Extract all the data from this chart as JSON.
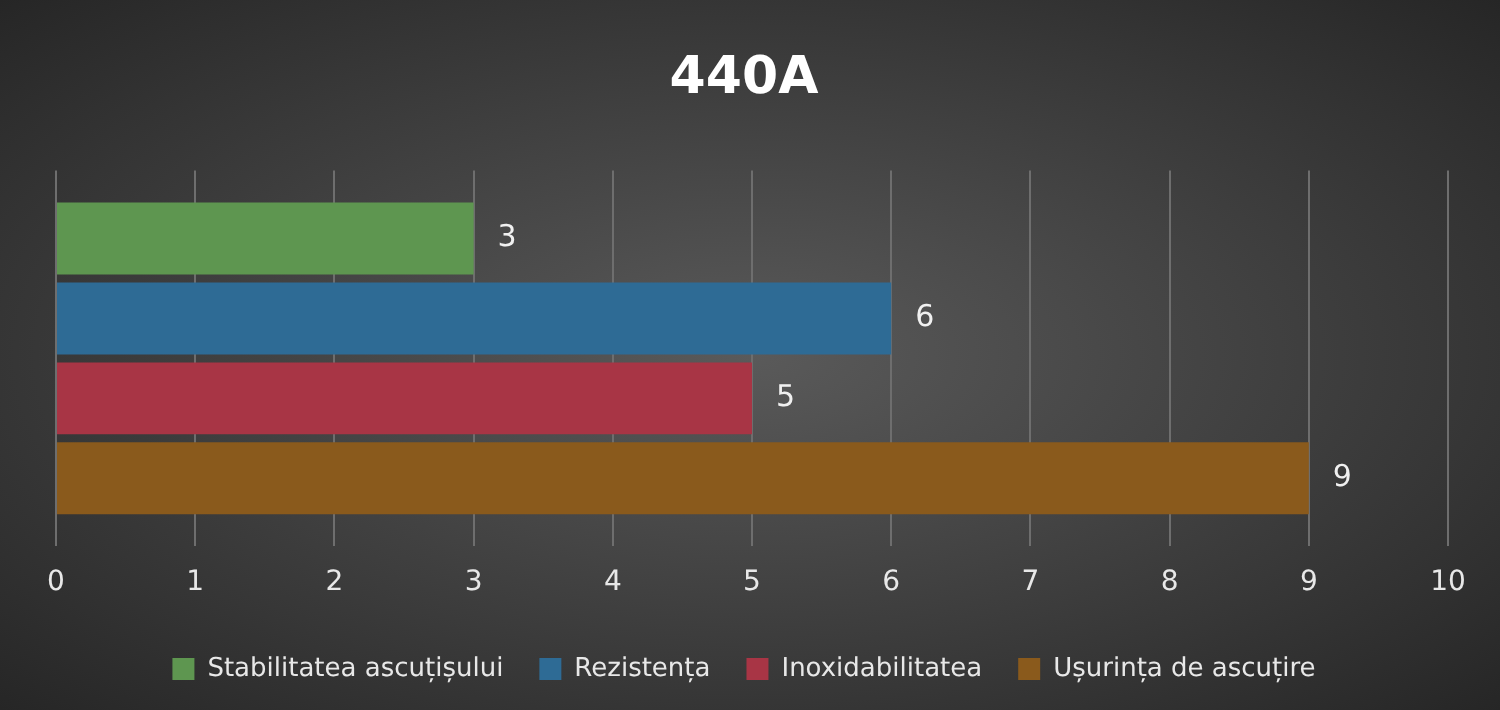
{
  "chart_data": {
    "type": "bar",
    "title": "440A",
    "orientation": "horizontal",
    "categories": [
      null
    ],
    "series": [
      {
        "name": "Stabilitatea ascuțișului",
        "color": "#5e9650",
        "values": [
          3
        ]
      },
      {
        "name": "Rezistența",
        "color": "#2e6b95",
        "values": [
          6
        ]
      },
      {
        "name": "Inoxidabilitatea",
        "color": "#a83545",
        "values": [
          5
        ]
      },
      {
        "name": "Ușurința de ascuțire",
        "color": "#8a5a1c",
        "values": [
          9
        ]
      }
    ],
    "xlim": [
      0,
      10
    ],
    "xticks": [
      0,
      1,
      2,
      3,
      4,
      5,
      6,
      7,
      8,
      9,
      10
    ],
    "grid": "x",
    "legend": "bottom",
    "data_labels": true
  }
}
